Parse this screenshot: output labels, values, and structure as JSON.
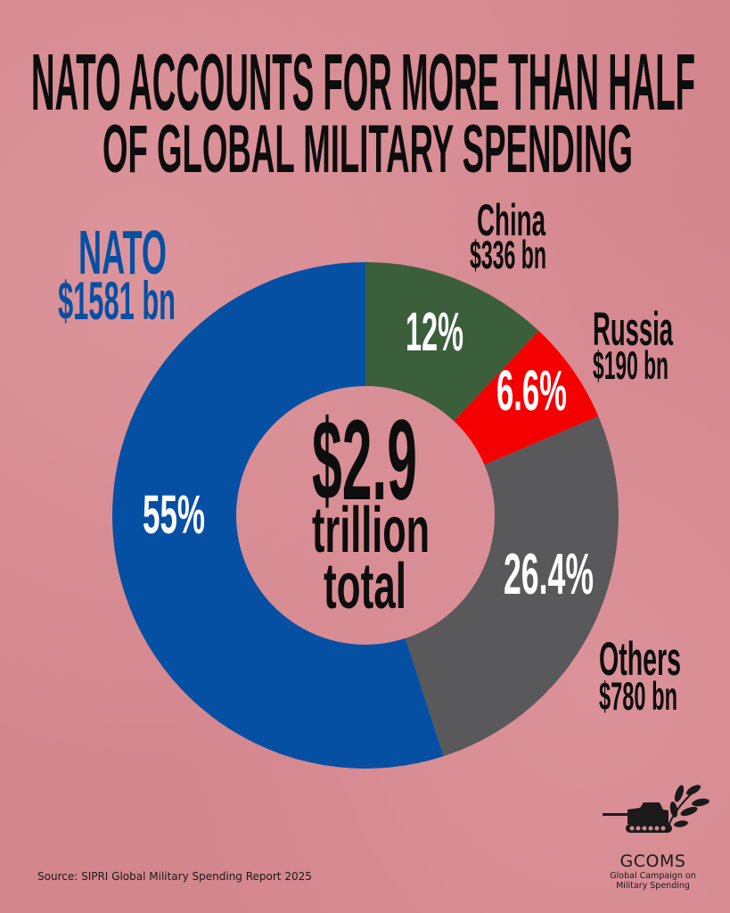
{
  "title": {
    "line1": "NATO ACCOUNTS FOR MORE THAN HALF",
    "line2": "OF GLOBAL MILITARY SPENDING"
  },
  "chart_data": {
    "type": "pie",
    "variant": "donut",
    "title": "NATO ACCOUNTS FOR MORE THAN HALF OF GLOBAL MILITARY SPENDING",
    "center_label": {
      "value": "$2.9",
      "line2": "trillion",
      "line3": "total"
    },
    "slices": [
      {
        "name": "China",
        "amount_label": "$336 bn",
        "amount_bn": 336,
        "percent": 12,
        "percent_label": "12%",
        "color": "#3b5e3b"
      },
      {
        "name": "Russia",
        "amount_label": "$190 bn",
        "amount_bn": 190,
        "percent": 6.6,
        "percent_label": "6.6%",
        "color": "#f50000"
      },
      {
        "name": "Others",
        "amount_label": "$780 bn",
        "amount_bn": 780,
        "percent": 26.4,
        "percent_label": "26.4%",
        "color": "#59595b"
      },
      {
        "name": "NATO",
        "amount_label": "$1581 bn",
        "amount_bn": 1581,
        "percent": 55,
        "percent_label": "55%",
        "color": "#0650a4"
      }
    ],
    "start": "top",
    "direction": "clockwise"
  },
  "source": "Source: SIPRI Global Military Spending Report 2025",
  "logo": {
    "name": "GCOMS",
    "line1": "Global Campaign on",
    "line2": "Military Spending"
  }
}
